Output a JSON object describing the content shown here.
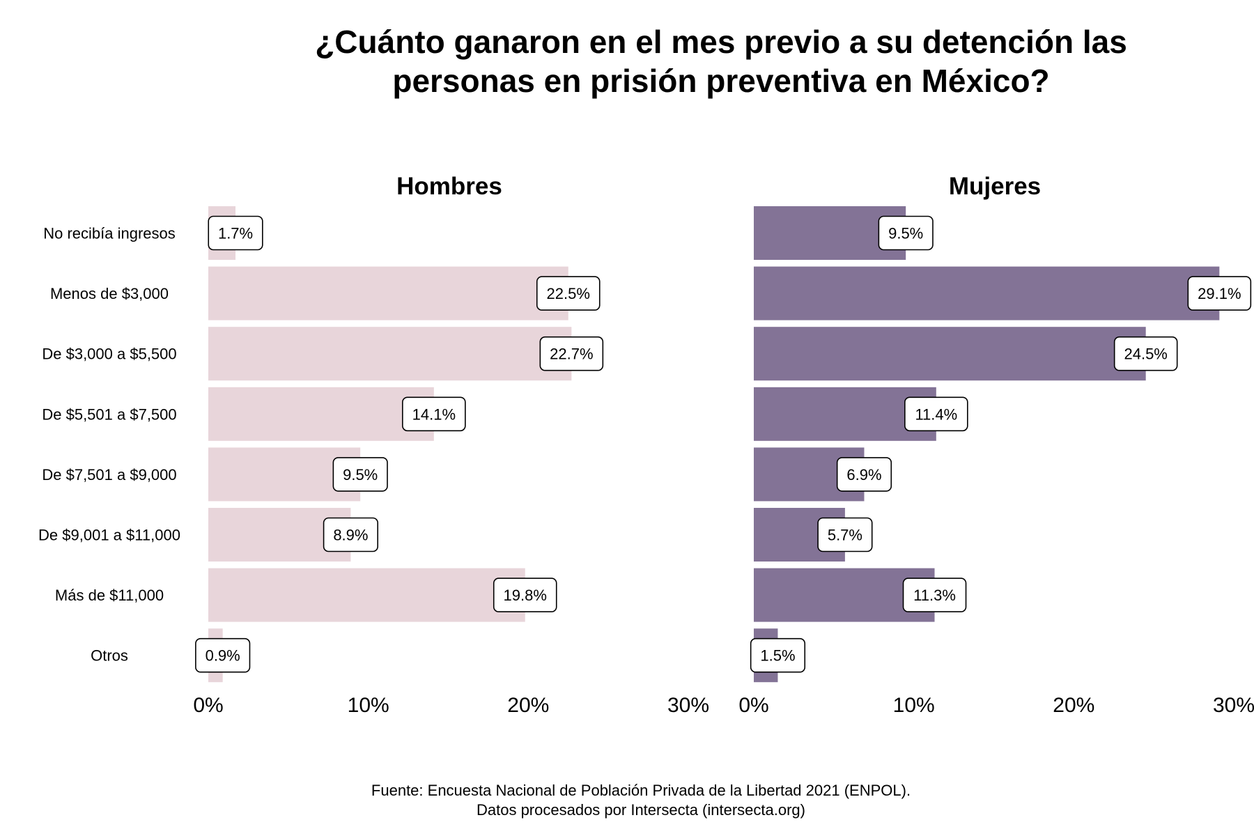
{
  "title": [
    "¿Cuánto ganaron en el mes previo a su detención las",
    "personas en prisión preventiva en México?"
  ],
  "caption": [
    "Fuente: Encuesta Nacional de Población Privada de la Libertad 2021 (ENPOL).",
    "Datos procesados por Intersecta (intersecta.org)"
  ],
  "chart_data": {
    "type": "bar",
    "orientation": "horizontal",
    "categories": [
      "No recibía ingresos",
      "Menos de $3,000",
      "De $3,000 a $5,500",
      "De $5,501 a $7,500",
      "De $7,501 a $9,000",
      "De $9,001 a $11,000",
      "Más de $11,000",
      "Otros"
    ],
    "xlim": [
      0,
      30
    ],
    "xticks": [
      0,
      10,
      20,
      30
    ],
    "xtick_labels": [
      "0%",
      "10%",
      "20%",
      "30%"
    ],
    "grid": false,
    "panels": [
      {
        "title": "Hombres",
        "color": "#e8d5da",
        "values": [
          1.7,
          22.5,
          22.7,
          14.1,
          9.5,
          8.9,
          19.8,
          0.9
        ],
        "labels": [
          "1.7%",
          "22.5%",
          "22.7%",
          "14.1%",
          "9.5%",
          "8.9%",
          "19.8%",
          "0.9%"
        ]
      },
      {
        "title": "Mujeres",
        "color": "#837396",
        "values": [
          9.5,
          29.1,
          24.5,
          11.4,
          6.9,
          5.7,
          11.3,
          1.5
        ],
        "labels": [
          "9.5%",
          "29.1%",
          "24.5%",
          "11.4%",
          "6.9%",
          "5.7%",
          "11.3%",
          "1.5%"
        ]
      }
    ]
  }
}
